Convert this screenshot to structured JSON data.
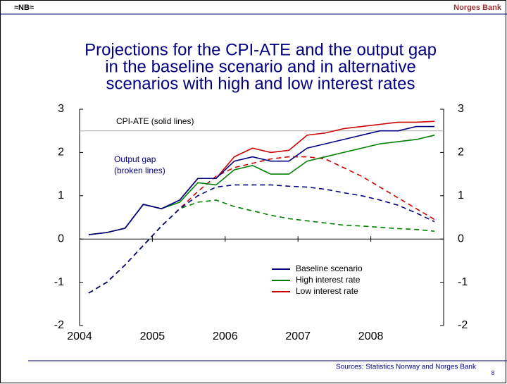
{
  "header": {
    "logo": "≈NB≈",
    "brand": "Norges Bank"
  },
  "chart_data": {
    "type": "line",
    "title": [
      "Projections for the CPI-ATE and the output gap",
      "in the baseline scenario and in alternative",
      "scenarios with high and low interest rates"
    ],
    "x": [
      2004.125,
      2004.375,
      2004.625,
      2004.875,
      2005.125,
      2005.375,
      2005.625,
      2005.875,
      2006.125,
      2006.375,
      2006.625,
      2006.875,
      2007.125,
      2007.375,
      2007.625,
      2007.875,
      2008.125,
      2008.375,
      2008.625,
      2008.875
    ],
    "xlim": [
      2004,
      2009
    ],
    "xticks": [
      2004,
      2005,
      2006,
      2007,
      2008
    ],
    "ylim": [
      -2,
      3
    ],
    "yticks": [
      -2,
      -1,
      0,
      1,
      2,
      3
    ],
    "y2lim": [
      -2,
      3
    ],
    "y2ticks": [
      -2,
      -1,
      0,
      1,
      2,
      3
    ],
    "reference_line": 2.5,
    "annotations": [
      "CPI-ATE (solid lines)",
      "Output gap",
      "(broken lines)"
    ],
    "series": [
      {
        "name": "Baseline scenario",
        "color": "#000080",
        "values": [
          0.1,
          0.15,
          0.25,
          0.8,
          0.7,
          0.9,
          1.4,
          1.4,
          1.8,
          1.9,
          1.8,
          1.8,
          2.1,
          2.2,
          2.3,
          2.4,
          2.5,
          2.5,
          2.6,
          2.6
        ],
        "gap_values": [
          -1.25,
          -1.0,
          -0.6,
          -0.15,
          0.3,
          0.7,
          1.0,
          1.2,
          1.25,
          1.25,
          1.25,
          1.22,
          1.2,
          1.15,
          1.07,
          1.0,
          0.9,
          0.78,
          0.6,
          0.4
        ]
      },
      {
        "name": "High interest rate",
        "color": "#008000",
        "values": [
          0.1,
          0.15,
          0.25,
          0.8,
          0.7,
          0.85,
          1.3,
          1.25,
          1.6,
          1.7,
          1.5,
          1.5,
          1.8,
          1.9,
          2.0,
          2.1,
          2.2,
          2.25,
          2.3,
          2.4
        ],
        "gap_values": [
          -1.25,
          -1.0,
          -0.6,
          -0.15,
          0.3,
          0.7,
          0.85,
          0.9,
          0.75,
          0.65,
          0.55,
          0.47,
          0.42,
          0.37,
          0.32,
          0.3,
          0.27,
          0.24,
          0.22,
          0.18
        ]
      },
      {
        "name": "Low interest rate",
        "color": "#cc0000",
        "values": [
          0.1,
          0.15,
          0.25,
          0.8,
          0.7,
          0.9,
          1.4,
          1.4,
          1.9,
          2.1,
          2.0,
          2.05,
          2.4,
          2.45,
          2.55,
          2.6,
          2.65,
          2.7,
          2.7,
          2.72
        ],
        "gap_values": [
          -1.25,
          -1.0,
          -0.6,
          -0.15,
          0.3,
          0.7,
          1.1,
          1.45,
          1.65,
          1.75,
          1.85,
          1.9,
          1.9,
          1.85,
          1.65,
          1.45,
          1.2,
          0.95,
          0.7,
          0.45
        ]
      }
    ]
  },
  "footer": {
    "source": "Sources: Statistics Norway and Norges Bank",
    "page": "8"
  }
}
